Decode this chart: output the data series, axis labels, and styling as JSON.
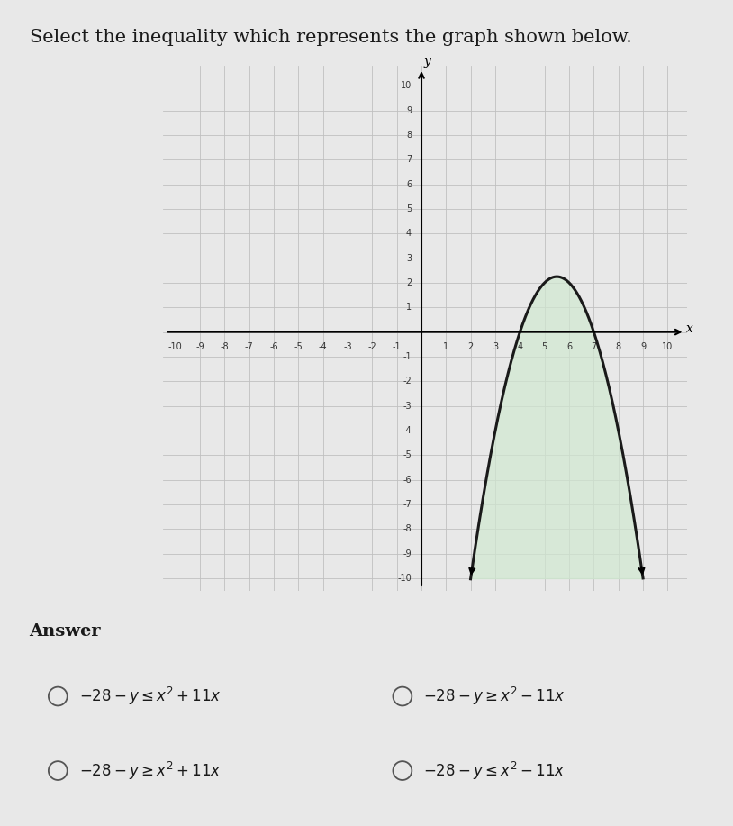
{
  "title": "Select the inequality which represents the graph shown below.",
  "title_fontsize": 15,
  "title_color": "#1a1a1a",
  "background_color": "#e8e8e8",
  "plot_bg_color": "#d4d4d4",
  "grid_color": "#c0c0c0",
  "curve_color": "#1a1a1a",
  "shade_color": "#d0e8d0",
  "shade_alpha": 0.7,
  "xmin": -10,
  "xmax": 10,
  "ymin": -10,
  "ymax": 10,
  "parabola_a": -1,
  "parabola_b": 11,
  "parabola_c": -28,
  "answers": [
    {
      "text": "$-28-y \\leq x^2+11x$",
      "col": 0,
      "row": 0
    },
    {
      "text": "$-28-y \\geq x^2-11x$",
      "col": 1,
      "row": 0
    },
    {
      "text": "$-28-y \\geq x^2+11x$",
      "col": 0,
      "row": 1
    },
    {
      "text": "$-28-y \\leq x^2-11x$",
      "col": 1,
      "row": 1
    }
  ]
}
